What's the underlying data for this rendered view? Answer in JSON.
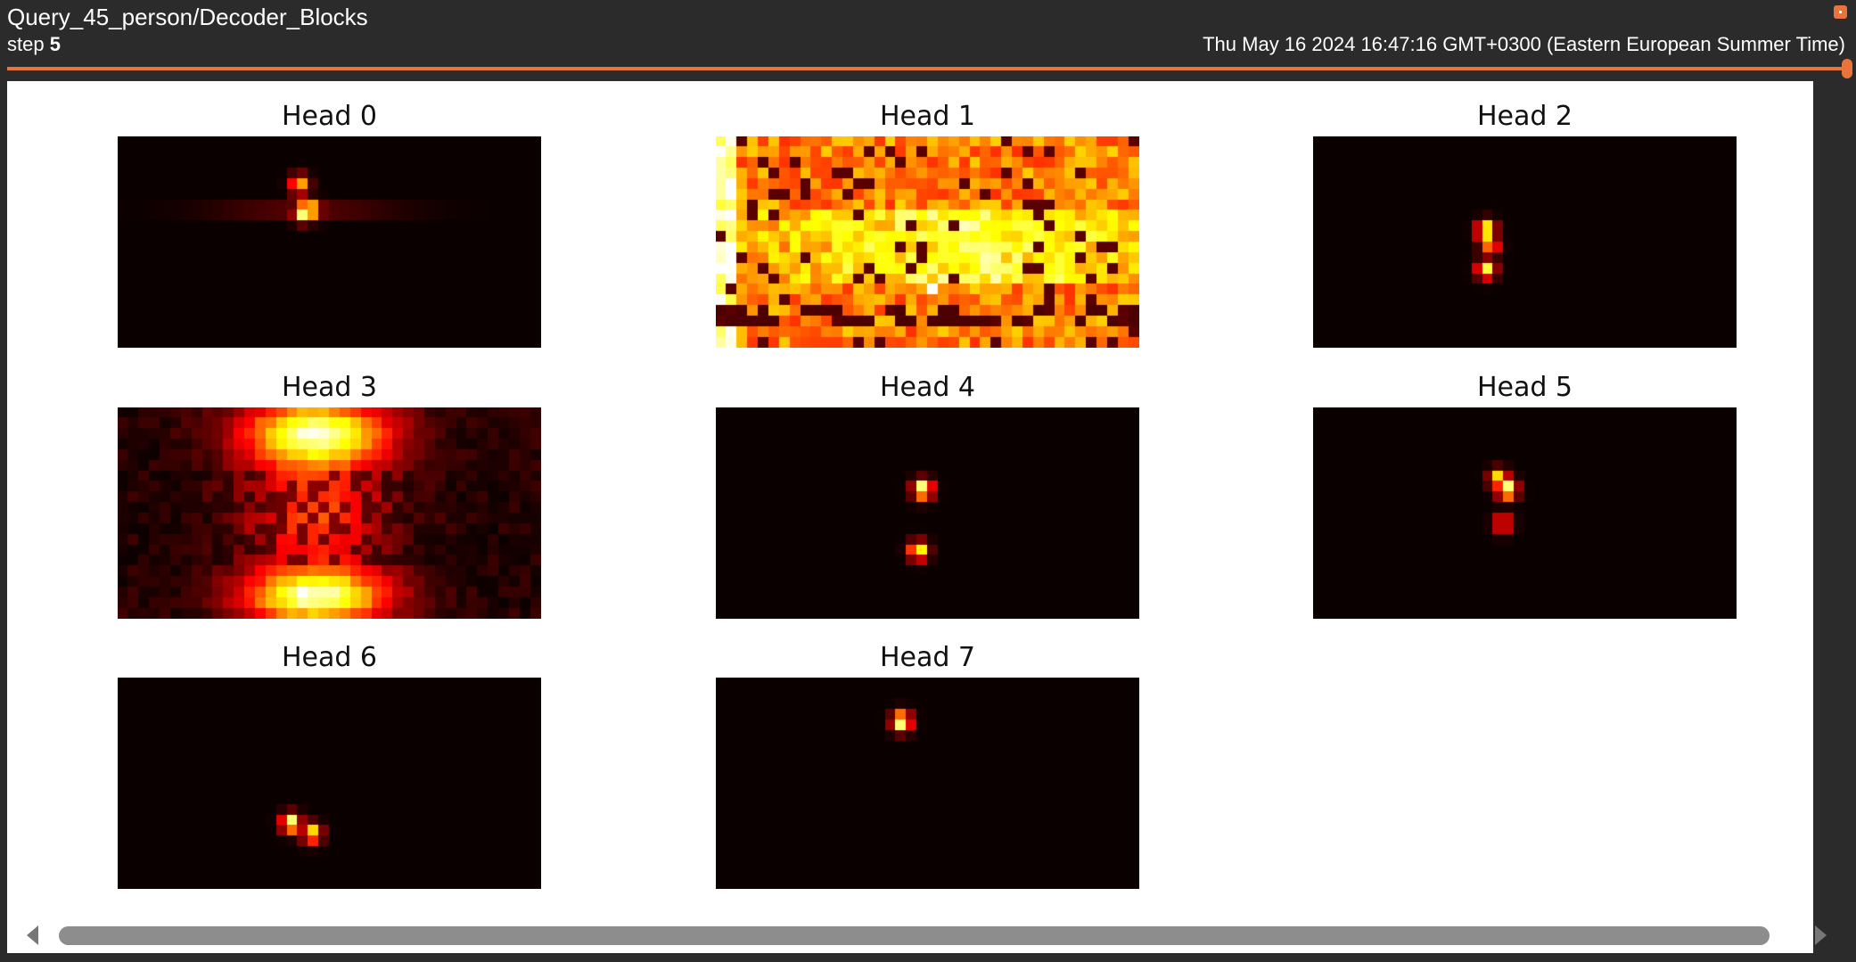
{
  "header": {
    "title": "Query_45_person/Decoder_Blocks",
    "step_label": "step",
    "step_value": "5",
    "timestamp": "Thu May 16 2024 16:47:16 GMT+0300 (Eastern European Summer Time)",
    "step_slider_fraction": 1.0
  },
  "colors": {
    "accent": "#e8743b",
    "header_bg": "#2b2b2b",
    "panel_bg": "#ffffff",
    "colormap": "hot"
  },
  "icons": {
    "scroll_left": "chevron-left-icon",
    "scroll_right": "chevron-right-icon",
    "corner": "pin-icon"
  },
  "heads": [
    {
      "title": "Head 0",
      "pattern": "focal",
      "blobs": [
        [
          0.44,
          0.36,
          1.0
        ],
        [
          0.43,
          0.23,
          0.7
        ],
        [
          0.46,
          0.35,
          0.85
        ]
      ],
      "band": 0.35
    },
    {
      "title": "Head 1",
      "pattern": "dense"
    },
    {
      "title": "Head 2",
      "pattern": "focal",
      "blobs": [
        [
          0.41,
          0.45,
          1.0
        ],
        [
          0.41,
          0.63,
          0.85
        ],
        [
          0.42,
          0.52,
          0.6
        ]
      ]
    },
    {
      "title": "Head 3",
      "pattern": "wide"
    },
    {
      "title": "Head 4",
      "pattern": "focal",
      "blobs": [
        [
          0.49,
          0.39,
          1.0
        ],
        [
          0.48,
          0.68,
          0.85
        ]
      ]
    },
    {
      "title": "Head 5",
      "pattern": "focal",
      "blobs": [
        [
          0.46,
          0.39,
          1.0
        ],
        [
          0.44,
          0.34,
          0.8
        ],
        [
          0.45,
          0.55,
          0.5
        ]
      ]
    },
    {
      "title": "Head 6",
      "pattern": "focal",
      "blobs": [
        [
          0.41,
          0.69,
          1.0
        ],
        [
          0.46,
          0.74,
          0.8
        ]
      ]
    },
    {
      "title": "Head 7",
      "pattern": "focal",
      "blobs": [
        [
          0.44,
          0.21,
          1.0
        ]
      ]
    }
  ]
}
